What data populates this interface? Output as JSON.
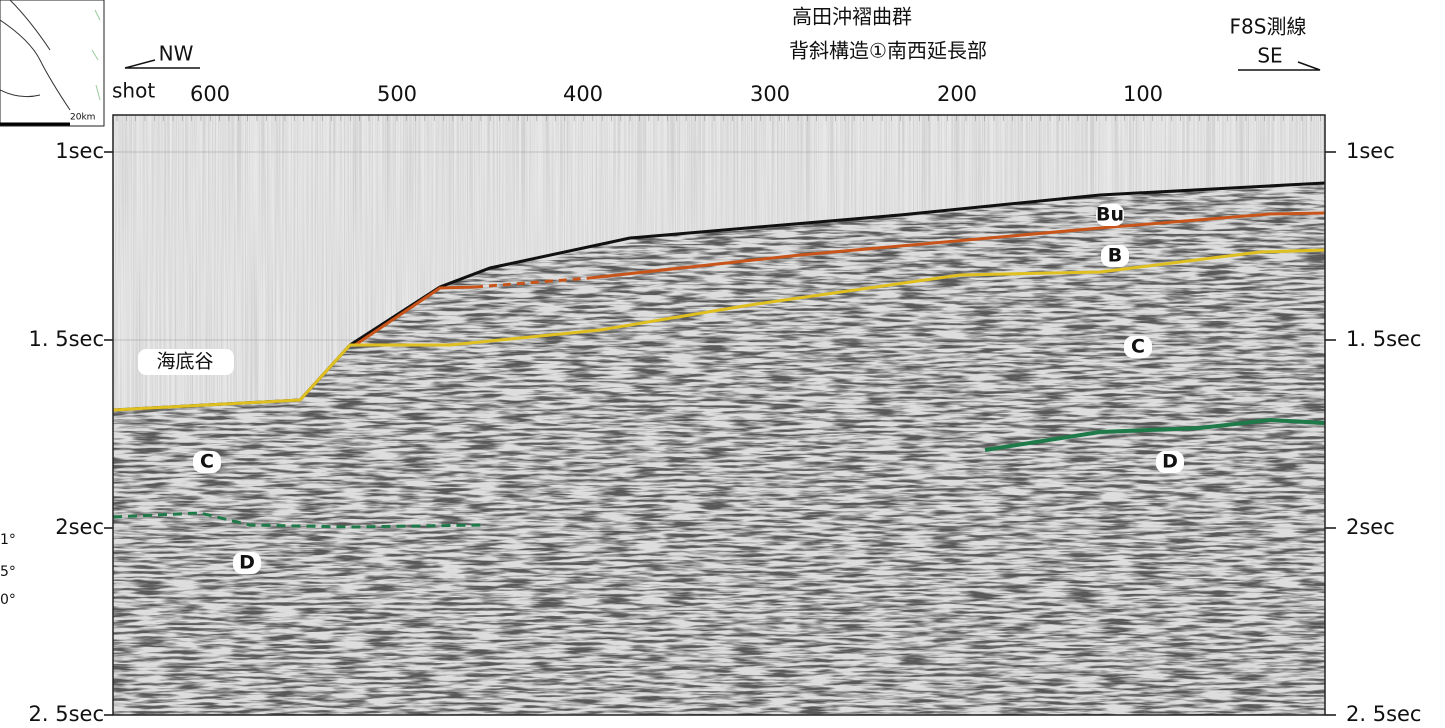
{
  "header": {
    "title_line1": "高田沖褶曲群",
    "title_line2": "背斜構造①南西延長部",
    "line_name": "F8S測線",
    "left_direction": "NW",
    "right_direction": "SE"
  },
  "shot_axis": {
    "label": "shot",
    "ticks": [
      "600",
      "500",
      "400",
      "300",
      "200",
      "100"
    ]
  },
  "time_axis": {
    "left_ticks": [
      "1sec",
      "1. 5sec",
      "2sec",
      "2. 5sec"
    ],
    "right_ticks": [
      "1sec",
      "1. 5sec",
      "2sec",
      "2. 5sec"
    ]
  },
  "horizon_labels": [
    "Bu",
    "B",
    "C",
    "C",
    "D",
    "D"
  ],
  "feature_label": "海底谷",
  "inset_map": {
    "scale": "20km"
  },
  "left_fragments": [
    "1°",
    "5°",
    "0°"
  ]
}
